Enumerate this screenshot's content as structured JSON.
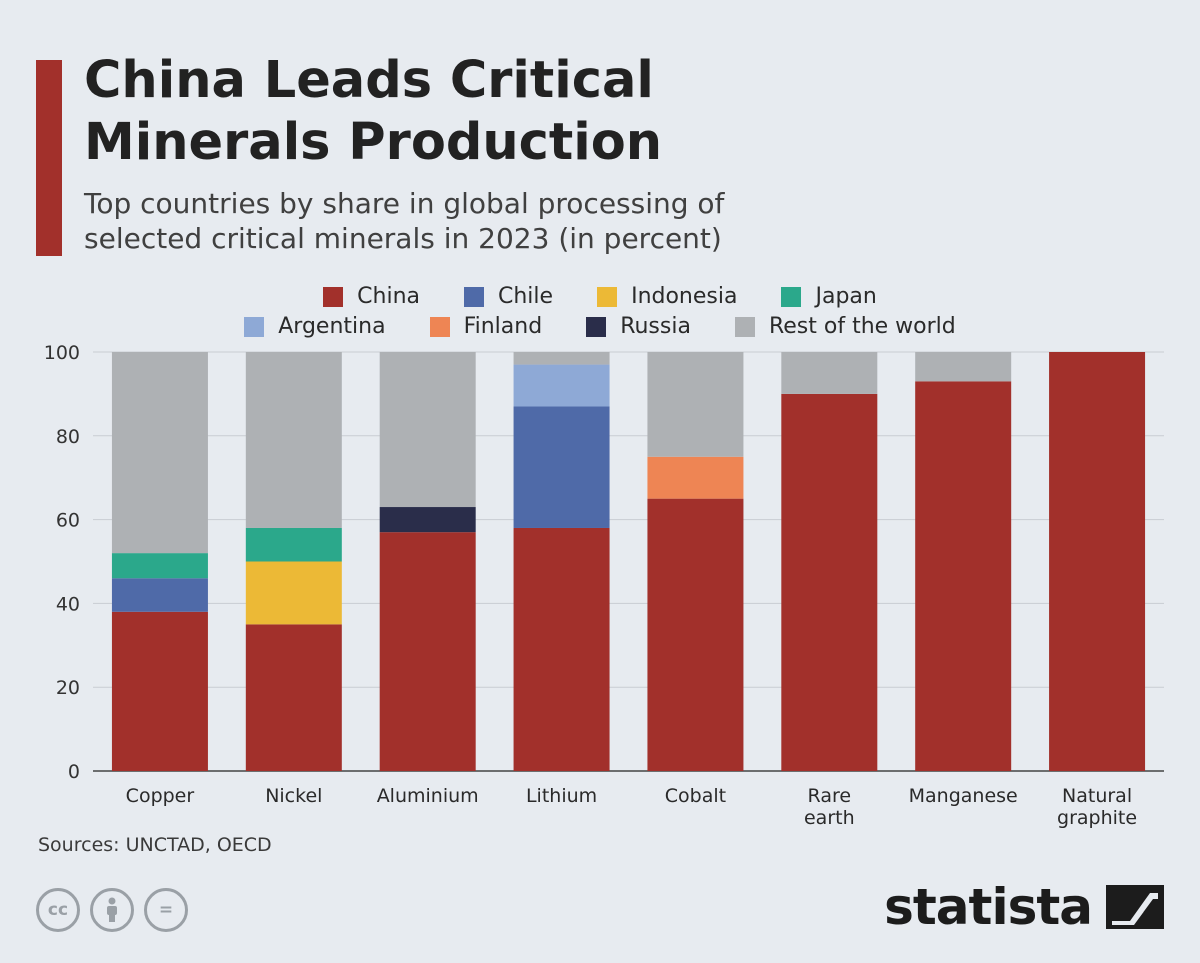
{
  "header": {
    "title_line1": "China Leads Critical",
    "title_line2": "Minerals Production",
    "subtitle_line1": "Top countries by share in global processing of",
    "subtitle_line2": "selected critical minerals in 2023 (in percent)"
  },
  "legend": {
    "row1": [
      {
        "label": "China",
        "color": "#a2302b"
      },
      {
        "label": "Chile",
        "color": "#4f6aa8"
      },
      {
        "label": "Indonesia",
        "color": "#ecb936"
      },
      {
        "label": "Japan",
        "color": "#2ba88b"
      }
    ],
    "row2": [
      {
        "label": "Argentina",
        "color": "#8ea9d6"
      },
      {
        "label": "Finland",
        "color": "#ee8554"
      },
      {
        "label": "Russia",
        "color": "#2a2d4a"
      },
      {
        "label": "Rest of the world",
        "color": "#aeb1b4"
      }
    ]
  },
  "chart_data": {
    "type": "bar",
    "stacked": true,
    "categories": [
      [
        "Copper"
      ],
      [
        "Nickel"
      ],
      [
        "Aluminium"
      ],
      [
        "Lithium"
      ],
      [
        "Cobalt"
      ],
      [
        "Rare",
        "earth"
      ],
      [
        "Manganese"
      ],
      [
        "Natural",
        "graphite"
      ]
    ],
    "ylim": [
      0,
      100
    ],
    "yticks": [
      0,
      20,
      40,
      60,
      80,
      100
    ],
    "grid": true,
    "legend_position": "top",
    "series": [
      {
        "name": "China",
        "color": "#a2302b",
        "values": [
          38,
          35,
          57,
          58,
          65,
          90,
          93,
          100
        ]
      },
      {
        "name": "Chile",
        "color": "#4f6aa8",
        "values": [
          8,
          0,
          0,
          29,
          0,
          0,
          0,
          0
        ]
      },
      {
        "name": "Indonesia",
        "color": "#ecb936",
        "values": [
          0,
          15,
          0,
          0,
          0,
          0,
          0,
          0
        ]
      },
      {
        "name": "Japan",
        "color": "#2ba88b",
        "values": [
          6,
          8,
          0,
          0,
          0,
          0,
          0,
          0
        ]
      },
      {
        "name": "Argentina",
        "color": "#8ea9d6",
        "values": [
          0,
          0,
          0,
          10,
          0,
          0,
          0,
          0
        ]
      },
      {
        "name": "Finland",
        "color": "#ee8554",
        "values": [
          0,
          0,
          0,
          0,
          10,
          0,
          0,
          0
        ]
      },
      {
        "name": "Russia",
        "color": "#2a2d4a",
        "values": [
          0,
          0,
          6,
          0,
          0,
          0,
          0,
          0
        ]
      },
      {
        "name": "Rest of the world",
        "color": "#aeb1b4",
        "values": [
          48,
          42,
          37,
          3,
          25,
          10,
          7,
          0
        ]
      }
    ]
  },
  "footer": {
    "sources": "Sources: UNCTAD, OECD",
    "cc_icons": [
      {
        "name": "cc-icon",
        "glyph": "cc"
      },
      {
        "name": "attribution-icon",
        "glyph": "†"
      },
      {
        "name": "no-derivatives-icon",
        "glyph": "="
      }
    ],
    "brand": "statista"
  }
}
